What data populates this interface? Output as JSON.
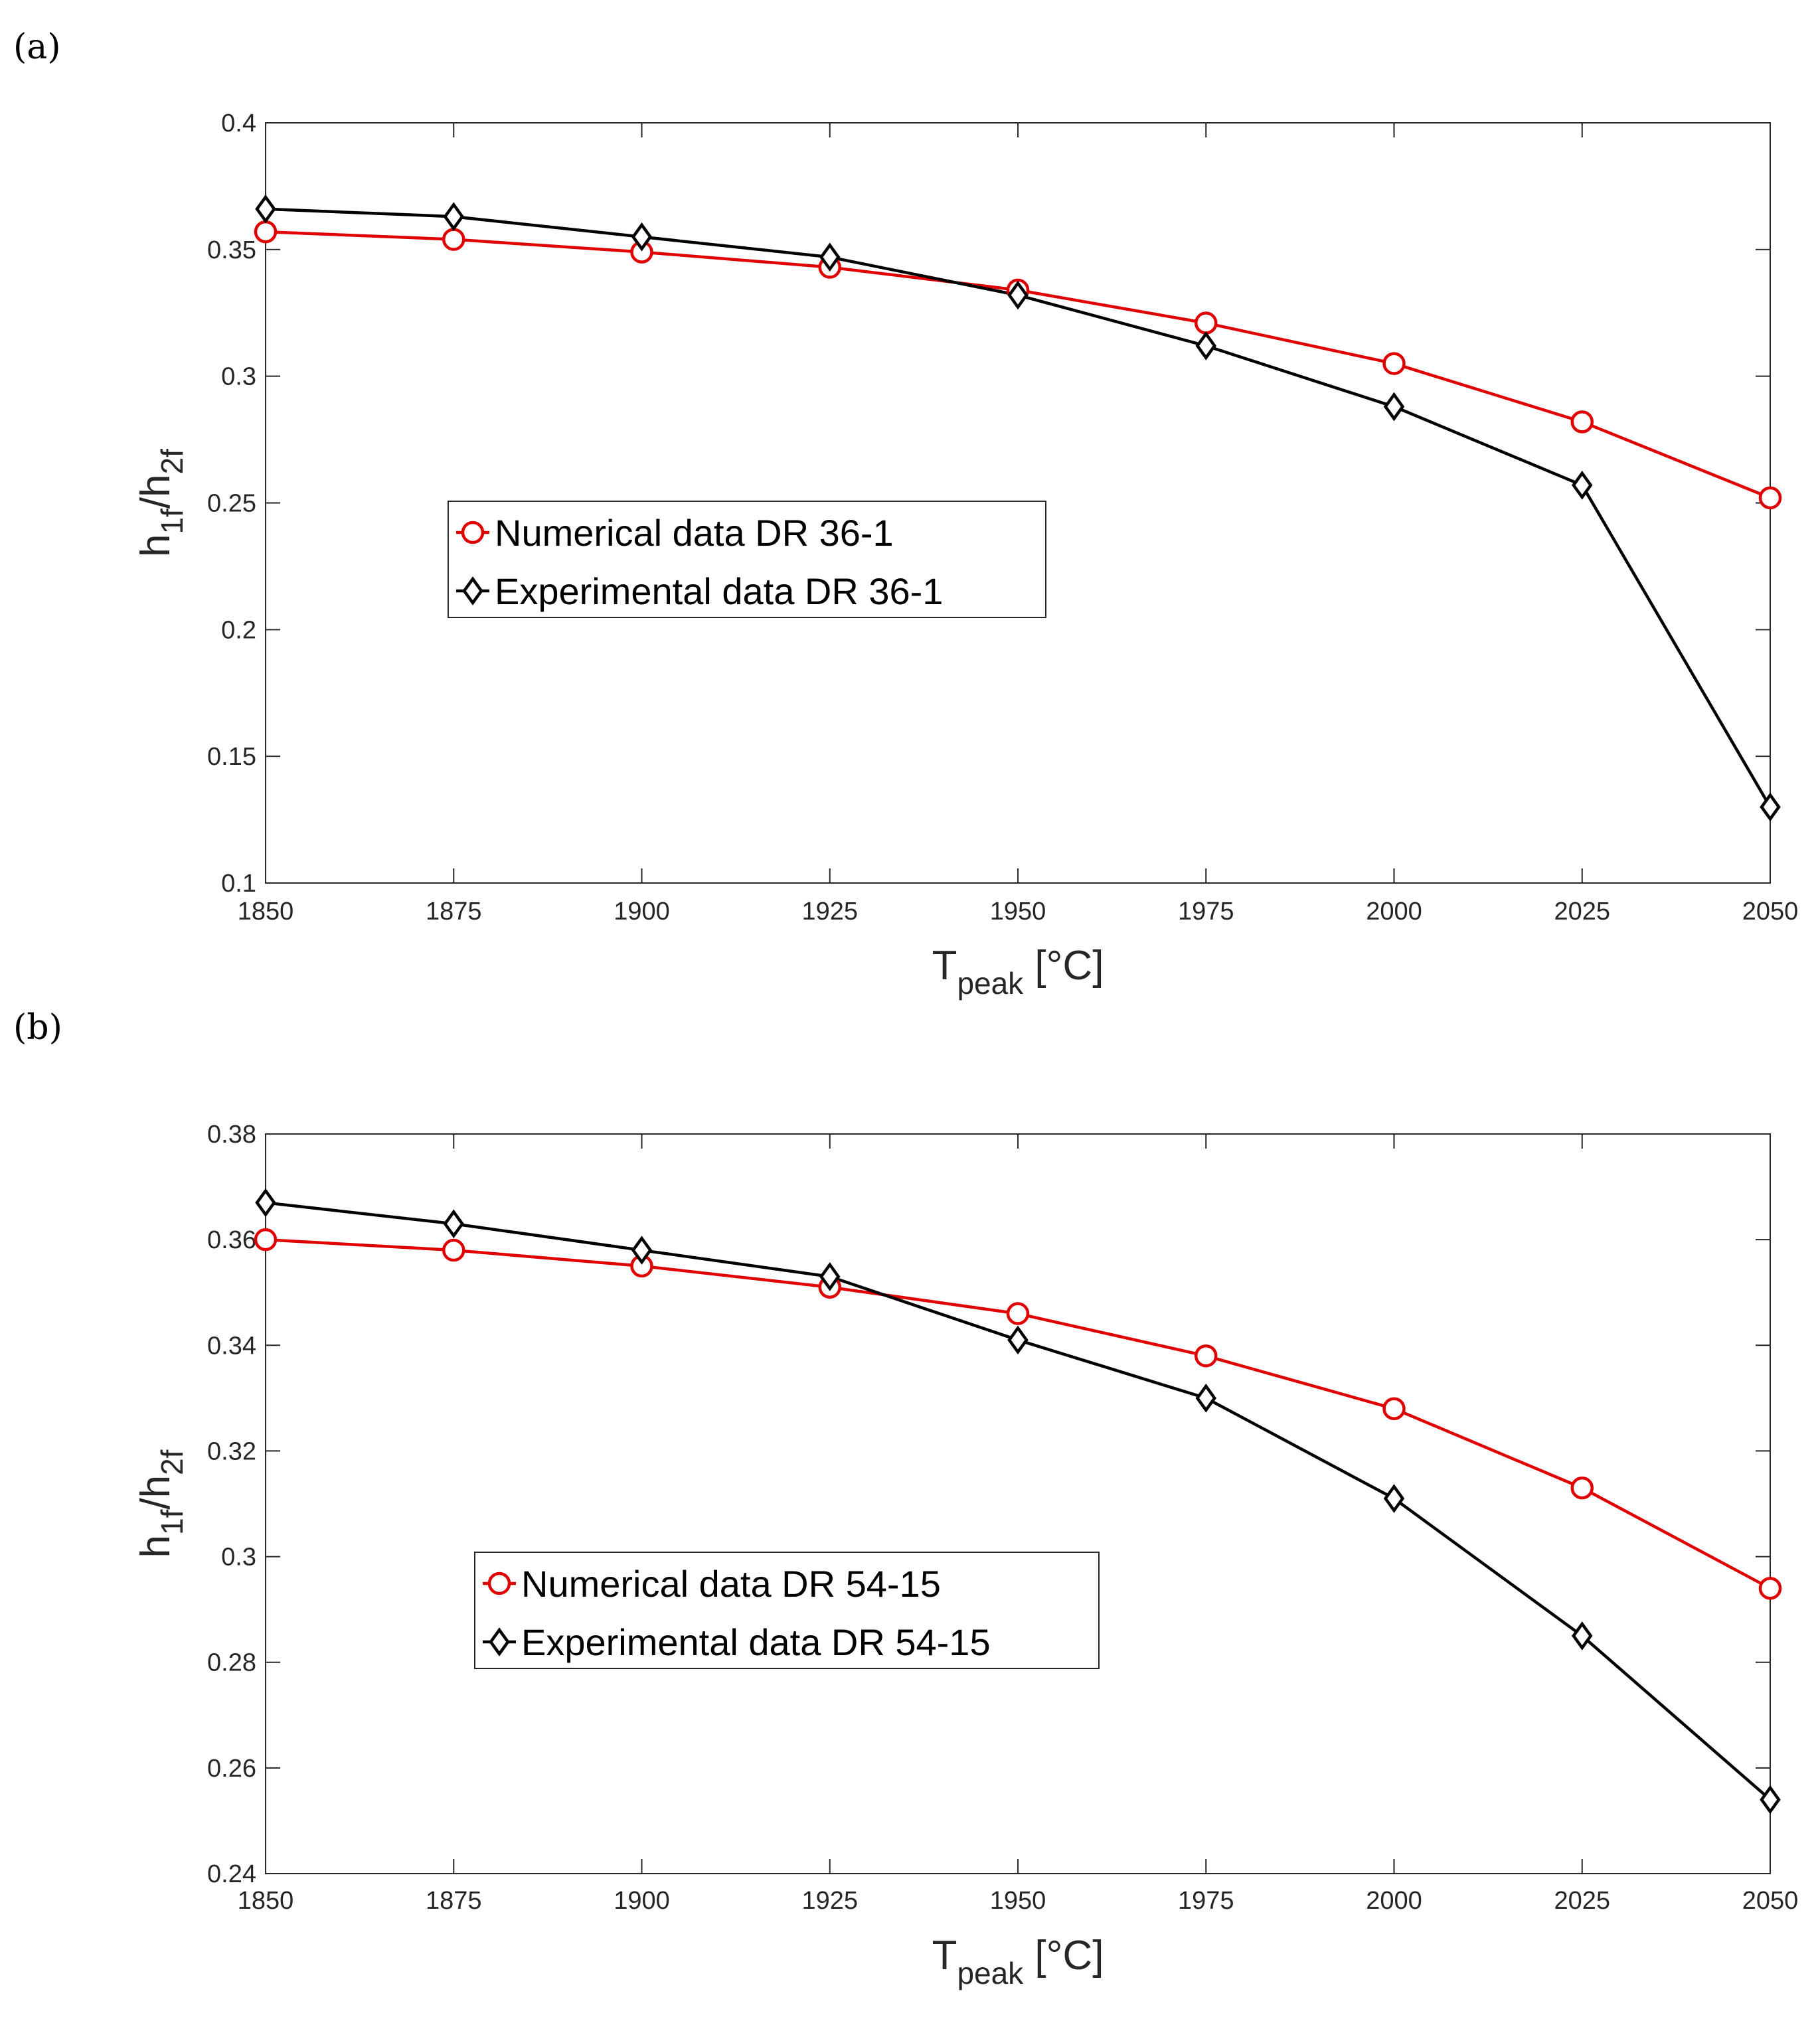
{
  "chart_data": [
    {
      "panel_label": "(a)",
      "type": "line",
      "xlabel": {
        "main": "T",
        "sub": "peak",
        "unit": " [°C]"
      },
      "ylabel": {
        "h": "h",
        "sub1": "1f",
        "slash": "/h",
        "sub2": "2f"
      },
      "x": [
        1850,
        1875,
        1900,
        1925,
        1950,
        1975,
        2000,
        2025,
        2050
      ],
      "xlim": [
        1850,
        2050
      ],
      "ylim": [
        0.1,
        0.4
      ],
      "xticks": [
        "1850",
        "1875",
        "1900",
        "1925",
        "1950",
        "1975",
        "2000",
        "2025",
        "2050"
      ],
      "yticks": [
        "0.1",
        "0.15",
        "0.2",
        "0.25",
        "0.3",
        "0.35",
        "0.4"
      ],
      "ytick_values": [
        0.1,
        0.15,
        0.2,
        0.25,
        0.3,
        0.35,
        0.4
      ],
      "legend_position": "middle-left",
      "series": [
        {
          "name": "Numerical data DR 36-1",
          "color": "#e00000",
          "marker": "circle",
          "values": [
            0.357,
            0.354,
            0.349,
            0.343,
            0.334,
            0.321,
            0.305,
            0.282,
            0.252
          ]
        },
        {
          "name": "Experimental data DR 36-1",
          "color": "#000000",
          "marker": "diamond",
          "values": [
            0.366,
            0.363,
            0.355,
            0.347,
            0.332,
            0.312,
            0.288,
            0.257,
            0.13
          ]
        }
      ]
    },
    {
      "panel_label": "(b)",
      "type": "line",
      "xlabel": {
        "main": "T",
        "sub": "peak",
        "unit": " [°C]"
      },
      "ylabel": {
        "h": "h",
        "sub1": "1f",
        "slash": "/h",
        "sub2": "2f"
      },
      "x": [
        1850,
        1875,
        1900,
        1925,
        1950,
        1975,
        2000,
        2025,
        2050
      ],
      "xlim": [
        1850,
        2050
      ],
      "ylim": [
        0.24,
        0.38
      ],
      "xticks": [
        "1850",
        "1875",
        "1900",
        "1925",
        "1950",
        "1975",
        "2000",
        "2025",
        "2050"
      ],
      "yticks": [
        "0.24",
        "0.26",
        "0.28",
        "0.3",
        "0.32",
        "0.34",
        "0.36",
        "0.38"
      ],
      "ytick_values": [
        0.24,
        0.26,
        0.28,
        0.3,
        0.32,
        0.34,
        0.36,
        0.38
      ],
      "legend_position": "lower-left",
      "series": [
        {
          "name": "Numerical data DR 54-15",
          "color": "#e00000",
          "marker": "circle",
          "values": [
            0.36,
            0.358,
            0.355,
            0.351,
            0.346,
            0.338,
            0.328,
            0.313,
            0.294
          ]
        },
        {
          "name": "Experimental data DR 54-15",
          "color": "#000000",
          "marker": "diamond",
          "values": [
            0.367,
            0.363,
            0.358,
            0.353,
            0.341,
            0.33,
            0.311,
            0.285,
            0.254
          ]
        }
      ]
    }
  ]
}
